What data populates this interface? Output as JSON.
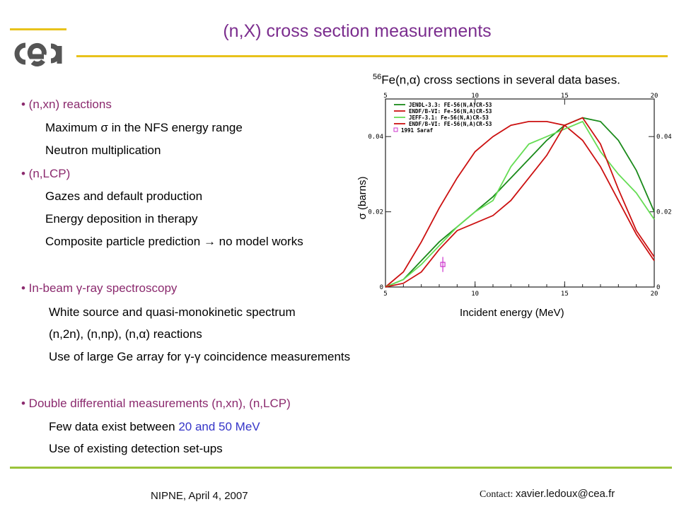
{
  "title": "(n,X) cross section measurements",
  "logo_text": "cea",
  "sections": [
    {
      "bullet": "• (n,xn) reactions",
      "items": [
        "Maximum σ in the NFS energy range",
        "Neutron multiplication"
      ]
    },
    {
      "bullet": "• (n,LCP)",
      "items": [
        "Gazes and default production",
        "Energy deposition in therapy",
        "Composite particle prediction → no model works"
      ]
    },
    {
      "bullet": "• In-beam γ-ray spectroscopy",
      "items": [
        "White source and quasi-monokinetic spectrum",
        "(n,2n), (n,np), (n,α) reactions",
        "Use of large Ge array for γ-γ coincidence measurements"
      ]
    },
    {
      "bullet": "• Double differential measurements (n,xn), (n,LCP)",
      "items_pre": "Few data exist between ",
      "items_highlight": "20 and 50 MeV",
      "items": [
        "Use of existing detection set-ups"
      ]
    }
  ],
  "chart_caption": {
    "superscript": "56",
    "text": "Fe(n,α) cross sections in several data bases."
  },
  "footer": {
    "left": "NIPNE, April 4, 2007",
    "contact_label": "Contact: ",
    "contact_email": "xavier.ledoux@cea.fr"
  },
  "chart_data": {
    "type": "line",
    "xlabel": "Incident energy (MeV)",
    "ylabel": "σ (barns)",
    "xlim": [
      5,
      20
    ],
    "ylim": [
      0,
      0.05
    ],
    "x_ticks": [
      "5",
      "10",
      "15",
      "20"
    ],
    "y_ticks": [
      "0",
      "0.02",
      "0.04"
    ],
    "legend_position": "top-left",
    "series": [
      {
        "name": "JENDL-3.3: FE-56(N,A)CR-53",
        "color": "#1a8a1a",
        "x": [
          5,
          6,
          7,
          8,
          9,
          10,
          11,
          12,
          13,
          14,
          15,
          16,
          17,
          18,
          19,
          20
        ],
        "y": [
          0,
          0.002,
          0.007,
          0.012,
          0.016,
          0.02,
          0.024,
          0.029,
          0.034,
          0.039,
          0.043,
          0.045,
          0.044,
          0.039,
          0.031,
          0.02
        ]
      },
      {
        "name": "ENDF/B-VI: Fe-56(N,A)CR-53",
        "color": "#cc1111",
        "x": [
          5,
          6,
          7,
          8,
          9,
          10,
          11,
          12,
          13,
          14,
          15,
          16,
          17,
          18,
          19,
          20
        ],
        "y": [
          0,
          0.004,
          0.012,
          0.021,
          0.029,
          0.036,
          0.04,
          0.043,
          0.044,
          0.044,
          0.043,
          0.039,
          0.032,
          0.023,
          0.014,
          0.007
        ]
      },
      {
        "name": "JEFF-3.1: Fe-56(N,A)CR-53",
        "color": "#66dd55",
        "x": [
          5,
          6,
          7,
          8,
          9,
          10,
          11,
          12,
          13,
          14,
          15,
          16,
          17,
          18,
          19,
          20
        ],
        "y": [
          0,
          0.002,
          0.006,
          0.011,
          0.016,
          0.02,
          0.023,
          0.032,
          0.038,
          0.04,
          0.042,
          0.044,
          0.036,
          0.03,
          0.025,
          0.018
        ]
      },
      {
        "name": "ENDF/B-VI: FE-56(N,A)CR-53",
        "color": "#cc1111",
        "x": [
          5,
          6,
          7,
          8,
          9,
          10,
          11,
          12,
          13,
          14,
          15,
          16,
          17,
          18,
          19,
          20
        ],
        "y": [
          0,
          0.001,
          0.004,
          0.01,
          0.015,
          0.017,
          0.019,
          0.023,
          0.029,
          0.035,
          0.043,
          0.045,
          0.038,
          0.026,
          0.015,
          0.008
        ]
      }
    ],
    "points": [
      {
        "name": "1991 Saraf",
        "color": "#cc33cc",
        "x": 8.2,
        "y": 0.006,
        "err": 0.002
      }
    ]
  }
}
